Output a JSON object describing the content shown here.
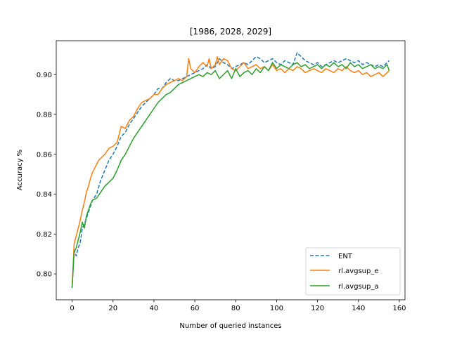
{
  "chart_data": {
    "type": "line",
    "title": "[1986, 2028, 2029]",
    "xlabel": "Number of queried instances",
    "ylabel": "Accuracy %",
    "xlim": [
      -7.75,
      162.75
    ],
    "ylim": [
      0.787,
      0.917
    ],
    "xticks": [
      0,
      20,
      40,
      60,
      80,
      100,
      120,
      140,
      160
    ],
    "yticks": [
      0.8,
      0.82,
      0.84,
      0.86,
      0.88,
      0.9
    ],
    "xtick_labels": [
      "0",
      "20",
      "40",
      "60",
      "80",
      "100",
      "120",
      "140",
      "160"
    ],
    "ytick_labels": [
      "0.80",
      "0.82",
      "0.84",
      "0.86",
      "0.88",
      "0.90"
    ],
    "grid": false,
    "legend_position": "lower-right",
    "series": [
      {
        "name": "ENT",
        "color": "#1f77b4",
        "dash": "dashed",
        "x": [
          0,
          1,
          2,
          3,
          4,
          5,
          6,
          7,
          8,
          9,
          10,
          12,
          14,
          16,
          18,
          20,
          22,
          24,
          26,
          28,
          30,
          32,
          34,
          36,
          38,
          40,
          42,
          44,
          46,
          48,
          50,
          52,
          54,
          56,
          58,
          60,
          62,
          64,
          66,
          68,
          70,
          72,
          74,
          76,
          78,
          80,
          82,
          84,
          86,
          88,
          90,
          92,
          94,
          96,
          98,
          100,
          102,
          104,
          106,
          108,
          110,
          112,
          114,
          116,
          118,
          120,
          122,
          124,
          126,
          128,
          130,
          132,
          134,
          136,
          138,
          140,
          142,
          144,
          146,
          148,
          150,
          152,
          154,
          155
        ],
        "values": [
          0.793,
          0.812,
          0.809,
          0.813,
          0.816,
          0.823,
          0.825,
          0.828,
          0.831,
          0.834,
          0.837,
          0.84,
          0.847,
          0.852,
          0.857,
          0.86,
          0.864,
          0.869,
          0.871,
          0.875,
          0.878,
          0.881,
          0.884,
          0.886,
          0.888,
          0.89,
          0.893,
          0.893,
          0.896,
          0.898,
          0.897,
          0.897,
          0.898,
          0.899,
          0.9,
          0.901,
          0.902,
          0.903,
          0.905,
          0.903,
          0.904,
          0.908,
          0.906,
          0.905,
          0.903,
          0.904,
          0.905,
          0.906,
          0.905,
          0.907,
          0.909,
          0.908,
          0.906,
          0.907,
          0.908,
          0.906,
          0.905,
          0.907,
          0.906,
          0.905,
          0.911,
          0.909,
          0.907,
          0.906,
          0.905,
          0.906,
          0.904,
          0.905,
          0.906,
          0.907,
          0.906,
          0.907,
          0.908,
          0.907,
          0.906,
          0.907,
          0.905,
          0.906,
          0.905,
          0.904,
          0.905,
          0.904,
          0.906,
          0.907
        ]
      },
      {
        "name": "rl.avgsup_e",
        "color": "#ff7f0e",
        "dash": "solid",
        "x": [
          0,
          1,
          2,
          3,
          4,
          5,
          6,
          7,
          8,
          9,
          10,
          11,
          12,
          13,
          14,
          16,
          18,
          20,
          22,
          24,
          26,
          28,
          30,
          32,
          34,
          36,
          38,
          40,
          42,
          44,
          46,
          48,
          50,
          52,
          54,
          56,
          57,
          58,
          60,
          62,
          64,
          66,
          67,
          68,
          70,
          71,
          72,
          74,
          76,
          78,
          80,
          82,
          84,
          86,
          88,
          90,
          92,
          94,
          96,
          98,
          100,
          102,
          104,
          106,
          108,
          110,
          112,
          114,
          116,
          118,
          120,
          122,
          124,
          126,
          128,
          130,
          132,
          134,
          136,
          138,
          140,
          142,
          144,
          146,
          148,
          150,
          152,
          154,
          155
        ],
        "values": [
          0.793,
          0.815,
          0.819,
          0.823,
          0.827,
          0.832,
          0.836,
          0.841,
          0.844,
          0.848,
          0.851,
          0.853,
          0.855,
          0.857,
          0.858,
          0.86,
          0.863,
          0.864,
          0.866,
          0.874,
          0.873,
          0.877,
          0.879,
          0.883,
          0.886,
          0.887,
          0.888,
          0.89,
          0.89,
          0.893,
          0.895,
          0.896,
          0.897,
          0.898,
          0.897,
          0.899,
          0.908,
          0.903,
          0.901,
          0.904,
          0.906,
          0.904,
          0.908,
          0.903,
          0.905,
          0.909,
          0.905,
          0.908,
          0.907,
          0.903,
          0.902,
          0.904,
          0.906,
          0.903,
          0.904,
          0.905,
          0.903,
          0.904,
          0.902,
          0.905,
          0.902,
          0.903,
          0.901,
          0.903,
          0.902,
          0.904,
          0.903,
          0.901,
          0.902,
          0.903,
          0.902,
          0.901,
          0.903,
          0.902,
          0.901,
          0.903,
          0.902,
          0.904,
          0.902,
          0.901,
          0.902,
          0.9,
          0.901,
          0.899,
          0.9,
          0.901,
          0.899,
          0.901,
          0.902
        ]
      },
      {
        "name": "rl.avgsup_a",
        "color": "#2ca02c",
        "dash": "solid",
        "x": [
          0,
          1,
          2,
          3,
          4,
          5,
          6,
          7,
          8,
          9,
          10,
          12,
          14,
          16,
          18,
          20,
          22,
          24,
          26,
          28,
          30,
          32,
          34,
          36,
          38,
          40,
          42,
          44,
          46,
          48,
          50,
          52,
          54,
          56,
          58,
          60,
          62,
          64,
          66,
          68,
          70,
          72,
          74,
          76,
          78,
          80,
          82,
          84,
          86,
          88,
          90,
          92,
          94,
          96,
          98,
          100,
          102,
          104,
          106,
          108,
          110,
          112,
          114,
          116,
          118,
          120,
          122,
          124,
          126,
          128,
          130,
          132,
          134,
          136,
          138,
          140,
          142,
          144,
          146,
          148,
          150,
          152,
          154,
          155
        ],
        "values": [
          0.793,
          0.811,
          0.813,
          0.817,
          0.821,
          0.826,
          0.823,
          0.829,
          0.832,
          0.835,
          0.837,
          0.838,
          0.841,
          0.844,
          0.846,
          0.848,
          0.852,
          0.857,
          0.86,
          0.864,
          0.868,
          0.871,
          0.874,
          0.877,
          0.88,
          0.883,
          0.886,
          0.888,
          0.89,
          0.891,
          0.893,
          0.895,
          0.896,
          0.897,
          0.898,
          0.899,
          0.9,
          0.899,
          0.901,
          0.9,
          0.902,
          0.898,
          0.9,
          0.902,
          0.898,
          0.903,
          0.899,
          0.901,
          0.902,
          0.9,
          0.903,
          0.901,
          0.904,
          0.902,
          0.906,
          0.903,
          0.905,
          0.904,
          0.903,
          0.905,
          0.906,
          0.904,
          0.905,
          0.903,
          0.904,
          0.905,
          0.903,
          0.905,
          0.904,
          0.906,
          0.904,
          0.905,
          0.903,
          0.906,
          0.904,
          0.905,
          0.903,
          0.904,
          0.905,
          0.903,
          0.904,
          0.903,
          0.905,
          0.902
        ]
      }
    ]
  }
}
